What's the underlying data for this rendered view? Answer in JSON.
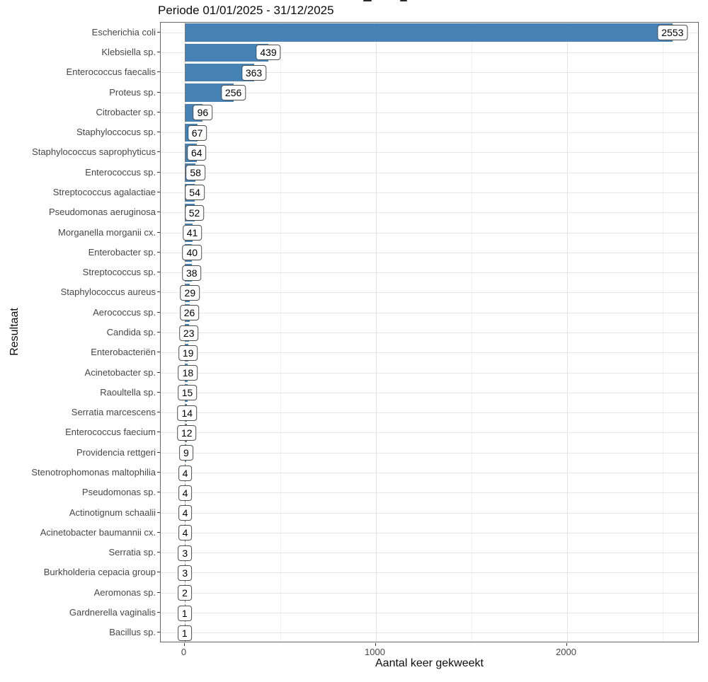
{
  "subtitle": "Periode 01/01/2025 - 31/12/2025",
  "x_axis_title": "Aantal keer gekweekt",
  "y_axis_title": "Resultaat",
  "chart_data": {
    "type": "bar",
    "orientation": "horizontal",
    "subtitle": "Periode 01/01/2025 - 31/12/2025",
    "xlabel": "Aantal keer gekweekt",
    "ylabel": "Resultaat",
    "categories": [
      "Escherichia coli",
      "Klebsiella sp.",
      "Enterococcus faecalis",
      "Proteus sp.",
      "Citrobacter sp.",
      "Staphyloccocus sp.",
      "Staphylococcus saprophyticus",
      "Enterococcus sp.",
      "Streptococcus agalactiae",
      "Pseudomonas aeruginosa",
      "Morganella morganii cx.",
      "Enterobacter sp.",
      "Streptococcus sp.",
      "Staphylococcus aureus",
      "Aerococcus sp.",
      "Candida sp.",
      "Enterobacteriën",
      "Acinetobacter sp.",
      "Raoultella sp.",
      "Serratia marcescens",
      "Enterococcus faecium",
      "Providencia rettgeri",
      "Stenotrophomonas maltophilia",
      "Pseudomonas sp.",
      "Actinotignum schaalii",
      "Acinetobacter baumannii cx.",
      "Serratia sp.",
      "Burkholderia cepacia group",
      "Aeromonas sp.",
      "Gardnerella vaginalis",
      "Bacillus sp."
    ],
    "values": [
      2553,
      439,
      363,
      256,
      96,
      67,
      64,
      58,
      54,
      52,
      41,
      40,
      38,
      29,
      26,
      23,
      19,
      18,
      15,
      14,
      12,
      9,
      4,
      4,
      4,
      4,
      3,
      3,
      2,
      1,
      1
    ],
    "value_labels": true,
    "x_ticks": [
      0,
      1000,
      2000
    ],
    "x_tick_labels": [
      "0",
      "1000",
      "2000"
    ],
    "x_minor_gridlines": [
      500,
      1500,
      2500
    ],
    "xlim": [
      0,
      2700
    ],
    "grid": true,
    "legend": false,
    "bar_color": "#4682B4"
  },
  "colors": {
    "bar": "#4682B4",
    "grid_major": "#e2e2e2",
    "grid_minor": "#f1f1f1",
    "panel_border": "#696969",
    "axis_text": "#474747",
    "title_text": "#0d0d0d",
    "label_box_border": "#4f4f4f",
    "label_box_bg": "#ffffff"
  }
}
